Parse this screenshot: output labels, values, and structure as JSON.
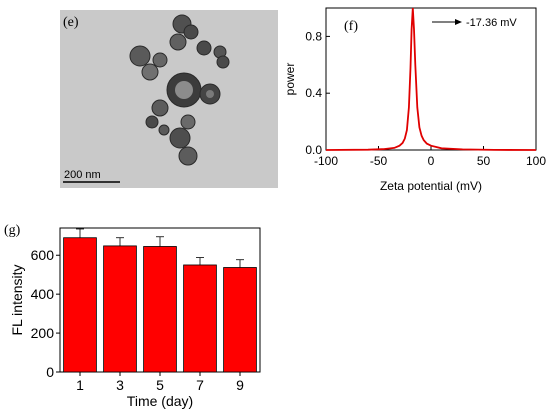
{
  "panels": {
    "e": {
      "label": "(e)",
      "scale_bar": "200 nm"
    }
  },
  "chart_data": [
    {
      "panel": "(f)",
      "type": "line",
      "xlabel": "Zeta potential (mV)",
      "ylabel": "power",
      "xlim": [
        -100,
        100
      ],
      "ylim": [
        0,
        1.0
      ],
      "xticks": [
        -100,
        -50,
        0,
        50,
        100
      ],
      "yticks": [
        0.0,
        0.4,
        0.8
      ],
      "annotation": "-17.36 mV",
      "series": [
        {
          "color": "#e00000",
          "x": [
            -100,
            -60,
            -45,
            -35,
            -30,
            -27,
            -25,
            -23,
            -21,
            -19.5,
            -18.5,
            -17.36,
            -16.2,
            -15,
            -13,
            -11,
            -9,
            -7,
            -4,
            0,
            10,
            30,
            60,
            100
          ],
          "y": [
            0.0,
            0.002,
            0.006,
            0.015,
            0.03,
            0.05,
            0.08,
            0.14,
            0.3,
            0.58,
            0.85,
            1.0,
            0.85,
            0.6,
            0.3,
            0.16,
            0.1,
            0.07,
            0.045,
            0.03,
            0.012,
            0.004,
            0.001,
            0.0
          ]
        }
      ]
    },
    {
      "panel": "(g)",
      "type": "bar",
      "xlabel": "Time (day)",
      "ylabel": "FL intensity",
      "categories": [
        "1",
        "3",
        "5",
        "7",
        "9"
      ],
      "values": [
        690,
        648,
        645,
        550,
        537
      ],
      "errors": [
        45,
        42,
        50,
        38,
        40
      ],
      "ylim": [
        0,
        740
      ],
      "yticks": [
        0,
        200,
        400,
        600
      ],
      "bar_color": "#ff0000"
    }
  ]
}
